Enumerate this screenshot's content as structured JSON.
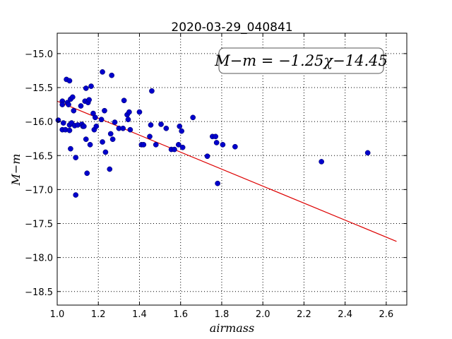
{
  "chart_data": {
    "type": "scatter",
    "title": "2020-03-29_040841",
    "xlabel": "airmass",
    "ylabel": "M−m",
    "xlim": [
      1.0,
      2.7
    ],
    "ylim": [
      -18.7,
      -14.7
    ],
    "xticks": [
      1.0,
      1.2,
      1.4,
      1.6,
      1.8,
      2.0,
      2.2,
      2.4,
      2.6
    ],
    "xtick_labels": [
      "1.0",
      "1.2",
      "1.4",
      "1.6",
      "1.8",
      "2.0",
      "2.2",
      "2.4",
      "2.6"
    ],
    "yticks": [
      -15.0,
      -15.5,
      -16.0,
      -16.5,
      -17.0,
      -17.5,
      -18.0,
      -18.5
    ],
    "ytick_labels": [
      "−15.0",
      "−15.5",
      "−16.0",
      "−16.5",
      "−17.0",
      "−17.5",
      "−18.0",
      "−18.5"
    ],
    "grid": true,
    "annotation": "M−m = −1.25χ−14.45",
    "fit": {
      "slope": -1.25,
      "intercept": -14.45,
      "x_range": [
        1.0,
        2.65
      ]
    },
    "points_color": "#0000cc",
    "line_color": "#dd0000",
    "points": [
      [
        1.005,
        -15.98
      ],
      [
        1.025,
        -15.7
      ],
      [
        1.025,
        -15.75
      ],
      [
        1.025,
        -16.12
      ],
      [
        1.03,
        -16.02
      ],
      [
        1.04,
        -16.12
      ],
      [
        1.045,
        -15.38
      ],
      [
        1.05,
        -15.72
      ],
      [
        1.055,
        -15.75
      ],
      [
        1.06,
        -15.4
      ],
      [
        1.06,
        -16.05
      ],
      [
        1.06,
        -16.13
      ],
      [
        1.065,
        -15.67
      ],
      [
        1.065,
        -16.4
      ],
      [
        1.07,
        -16.02
      ],
      [
        1.075,
        -15.64
      ],
      [
        1.08,
        -15.84
      ],
      [
        1.085,
        -16.06
      ],
      [
        1.09,
        -16.53
      ],
      [
        1.09,
        -17.08
      ],
      [
        1.1,
        -16.05
      ],
      [
        1.115,
        -15.77
      ],
      [
        1.12,
        -16.04
      ],
      [
        1.125,
        -16.07
      ],
      [
        1.13,
        -16.07
      ],
      [
        1.135,
        -15.7
      ],
      [
        1.14,
        -16.26
      ],
      [
        1.14,
        -15.51
      ],
      [
        1.145,
        -16.76
      ],
      [
        1.15,
        -15.72
      ],
      [
        1.155,
        -15.68
      ],
      [
        1.16,
        -16.34
      ],
      [
        1.165,
        -15.48
      ],
      [
        1.175,
        -15.88
      ],
      [
        1.18,
        -16.12
      ],
      [
        1.185,
        -15.94
      ],
      [
        1.19,
        -16.07
      ],
      [
        1.215,
        -15.97
      ],
      [
        1.22,
        -15.27
      ],
      [
        1.22,
        -16.3
      ],
      [
        1.23,
        -15.84
      ],
      [
        1.235,
        -16.45
      ],
      [
        1.255,
        -16.7
      ],
      [
        1.26,
        -16.18
      ],
      [
        1.265,
        -15.32
      ],
      [
        1.27,
        -16.26
      ],
      [
        1.28,
        -16.01
      ],
      [
        1.3,
        -16.1
      ],
      [
        1.32,
        -16.1
      ],
      [
        1.325,
        -15.69
      ],
      [
        1.34,
        -15.9
      ],
      [
        1.345,
        -15.97
      ],
      [
        1.35,
        -15.86
      ],
      [
        1.355,
        -16.12
      ],
      [
        1.4,
        -15.86
      ],
      [
        1.41,
        -16.34
      ],
      [
        1.42,
        -16.34
      ],
      [
        1.45,
        -16.22
      ],
      [
        1.455,
        -16.05
      ],
      [
        1.46,
        -15.55
      ],
      [
        1.48,
        -16.34
      ],
      [
        1.505,
        -16.04
      ],
      [
        1.53,
        -16.1
      ],
      [
        1.555,
        -16.41
      ],
      [
        1.57,
        -16.41
      ],
      [
        1.59,
        -16.34
      ],
      [
        1.595,
        -16.07
      ],
      [
        1.605,
        -16.14
      ],
      [
        1.61,
        -16.38
      ],
      [
        1.66,
        -15.94
      ],
      [
        1.73,
        -16.51
      ],
      [
        1.755,
        -16.22
      ],
      [
        1.77,
        -16.22
      ],
      [
        1.775,
        -16.31
      ],
      [
        1.78,
        -16.91
      ],
      [
        1.805,
        -16.34
      ],
      [
        1.865,
        -16.37
      ],
      [
        2.285,
        -16.59
      ],
      [
        2.51,
        -16.46
      ]
    ]
  }
}
